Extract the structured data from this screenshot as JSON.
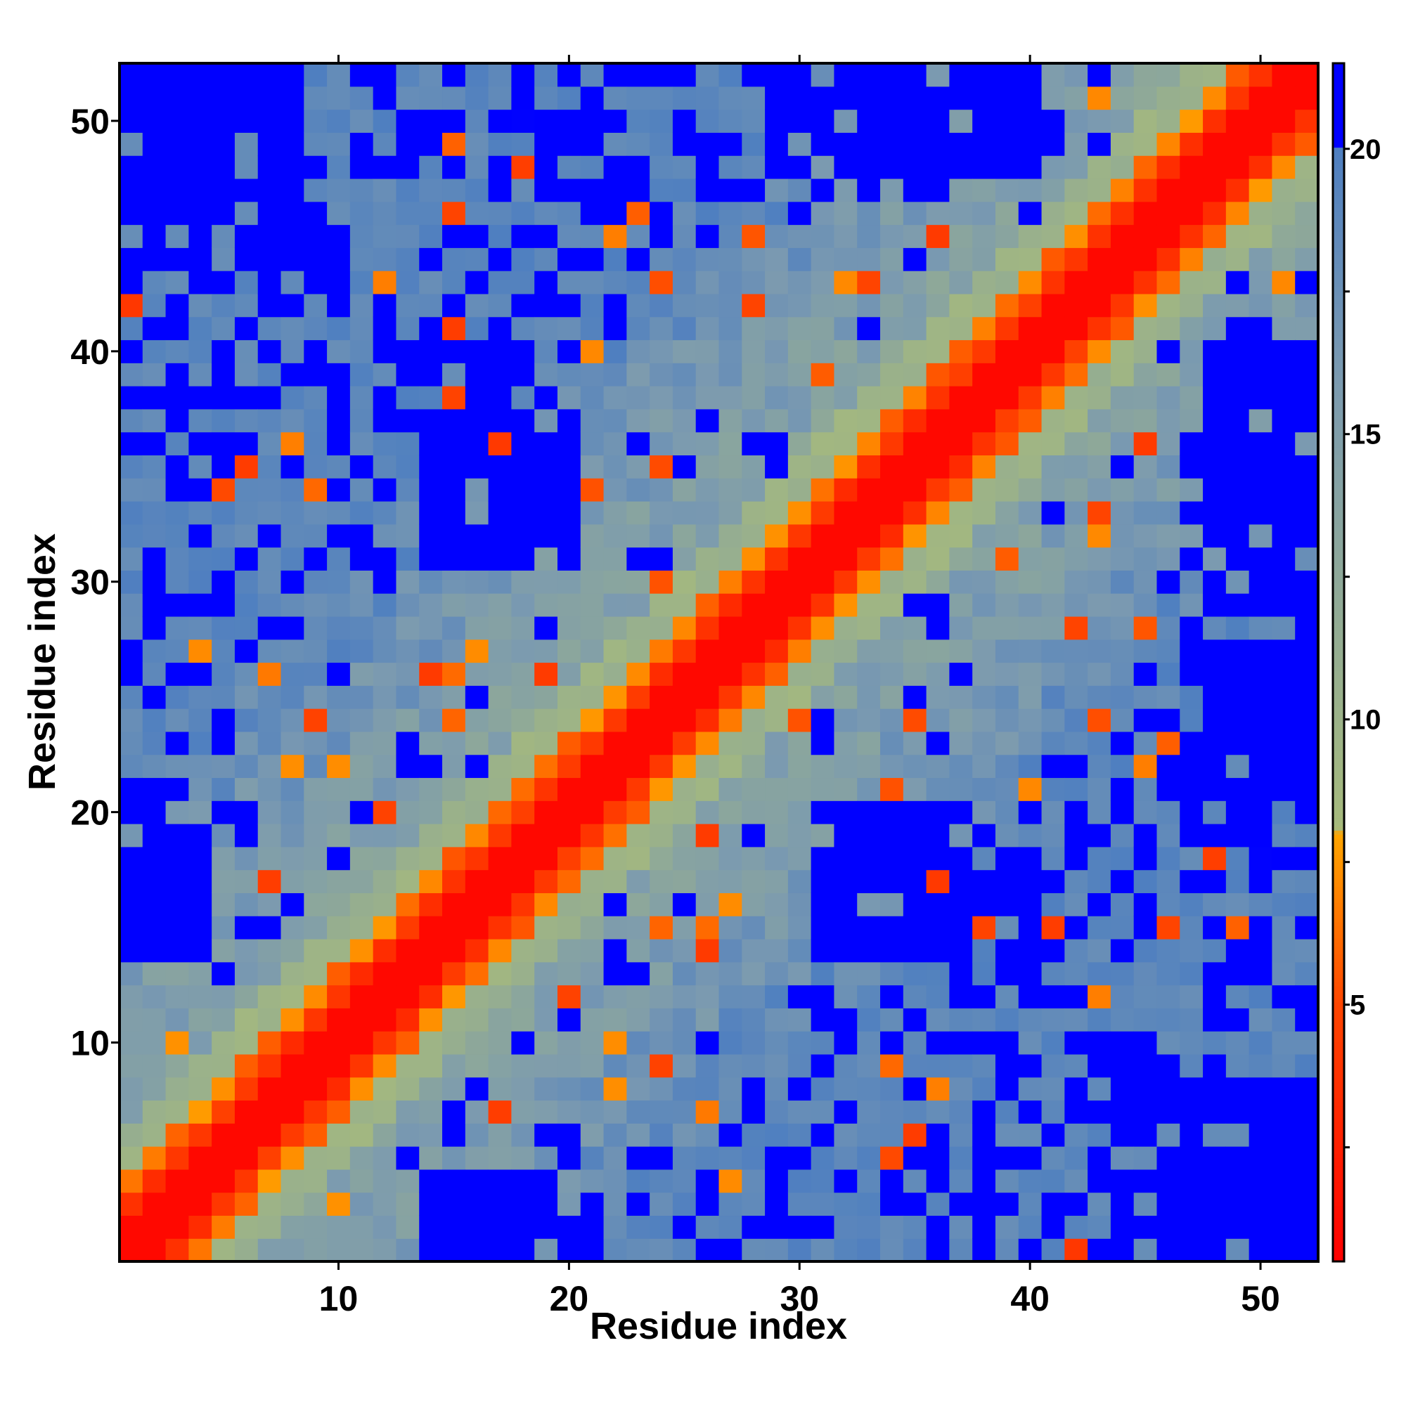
{
  "chart_data": {
    "type": "heatmap",
    "title": "",
    "xlabel": "Residue index",
    "ylabel": "Residue index",
    "n_residues": 52,
    "xlim": [
      0.5,
      52.5
    ],
    "ylim": [
      0.5,
      52.5
    ],
    "x_ticks": [
      10,
      20,
      30,
      40,
      50
    ],
    "y_ticks": [
      10,
      20,
      30,
      40,
      50
    ],
    "x_tick_labels": [
      "10",
      "20",
      "30",
      "40",
      "50"
    ],
    "y_tick_labels": [
      "10",
      "20",
      "30",
      "40",
      "50"
    ],
    "value_range": [
      1,
      21.5
    ],
    "colorbar": {
      "ticks": [
        5,
        10,
        15,
        20
      ],
      "tick_labels": [
        "5",
        "10",
        "15",
        "20"
      ],
      "range": [
        0.5,
        21.5
      ],
      "placement": "right"
    },
    "colormap": {
      "stops": [
        {
          "value": 0.5,
          "color": "#ff0000"
        },
        {
          "value": 5.0,
          "color": "#ff4500"
        },
        {
          "value": 8.0,
          "color": "#ffa500"
        },
        {
          "value": 8.1,
          "color": "#a6ba7c"
        },
        {
          "value": 16.0,
          "color": "#7b9ab0"
        },
        {
          "value": 20.0,
          "color": "#4f7fc0"
        },
        {
          "value": 20.01,
          "color": "#0000ff"
        },
        {
          "value": 21.5,
          "color": "#0000ff"
        }
      ]
    },
    "value_model": "Symmetric residue–residue distance map: values grow from ~1 on the diagonal (red) to ~8 at the band edge (orange), ~10–19 in intermediate regions (green-grey to steel blue), and >20 (blue) for distant pairs.",
    "blue_regions": [
      {
        "x": [
          14,
          20
        ],
        "y": [
          31,
          37
        ]
      },
      {
        "x": [
          31,
          37
        ],
        "y": [
          14,
          20
        ]
      },
      {
        "x": [
          1,
          8
        ],
        "y": [
          44,
          52
        ]
      },
      {
        "x": [
          44,
          52
        ],
        "y": [
          1,
          8
        ]
      },
      {
        "x": [
          29,
          40
        ],
        "y": [
          48,
          52
        ]
      },
      {
        "x": [
          48,
          52
        ],
        "y": [
          29,
          40
        ]
      },
      {
        "x": [
          1,
          4
        ],
        "y": [
          14,
          20
        ]
      },
      {
        "x": [
          14,
          20
        ],
        "y": [
          1,
          4
        ]
      },
      {
        "x": [
          48,
          52
        ],
        "y": [
          21,
          27
        ]
      }
    ]
  }
}
